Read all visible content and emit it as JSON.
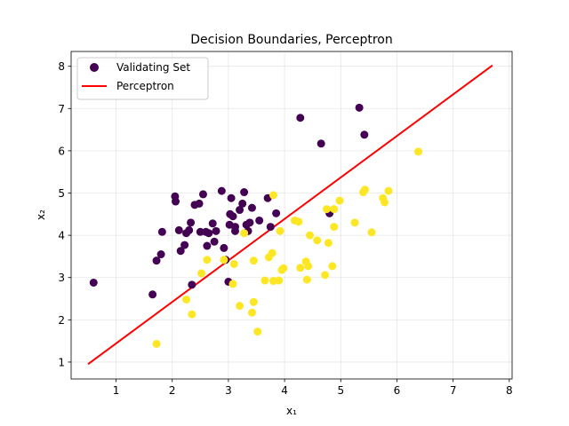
{
  "chart_data": {
    "type": "scatter",
    "title": "Decision Boundaries, Perceptron",
    "xlabel": "x₁",
    "ylabel": "x₂",
    "xlim": [
      0.2,
      8.05
    ],
    "ylim": [
      0.6,
      8.35
    ],
    "xticks": [
      1,
      2,
      3,
      4,
      5,
      6,
      7,
      8
    ],
    "yticks": [
      1,
      2,
      3,
      4,
      5,
      6,
      7,
      8
    ],
    "grid": true,
    "legend_position": "top-left",
    "colors": {
      "class0": "#440154",
      "class1": "#fde725",
      "boundary": "#ff0000"
    },
    "series": [
      {
        "name": "Validating Set",
        "kind": "scatter",
        "points_class0": [
          [
            0.6,
            2.88
          ],
          [
            1.65,
            2.6
          ],
          [
            1.72,
            3.4
          ],
          [
            1.8,
            3.55
          ],
          [
            1.82,
            4.08
          ],
          [
            2.05,
            4.92
          ],
          [
            2.06,
            4.8
          ],
          [
            2.12,
            4.12
          ],
          [
            2.15,
            3.63
          ],
          [
            2.22,
            3.77
          ],
          [
            2.25,
            4.05
          ],
          [
            2.3,
            4.12
          ],
          [
            2.33,
            4.3
          ],
          [
            2.35,
            2.83
          ],
          [
            2.4,
            4.72
          ],
          [
            2.48,
            4.75
          ],
          [
            2.5,
            4.08
          ],
          [
            2.55,
            4.97
          ],
          [
            2.6,
            4.08
          ],
          [
            2.62,
            3.75
          ],
          [
            2.65,
            4.05
          ],
          [
            2.72,
            4.28
          ],
          [
            2.75,
            3.85
          ],
          [
            2.78,
            4.1
          ],
          [
            2.88,
            5.05
          ],
          [
            2.92,
            3.7
          ],
          [
            2.95,
            3.42
          ],
          [
            3.0,
            2.9
          ],
          [
            3.02,
            4.25
          ],
          [
            3.03,
            4.5
          ],
          [
            3.05,
            4.88
          ],
          [
            3.08,
            4.45
          ],
          [
            3.12,
            4.2
          ],
          [
            3.12,
            4.1
          ],
          [
            3.2,
            4.6
          ],
          [
            3.25,
            4.75
          ],
          [
            3.28,
            5.02
          ],
          [
            3.32,
            4.25
          ],
          [
            3.35,
            4.1
          ],
          [
            3.38,
            4.3
          ],
          [
            3.42,
            4.65
          ],
          [
            3.55,
            4.35
          ],
          [
            3.7,
            4.88
          ],
          [
            3.75,
            4.2
          ],
          [
            3.85,
            4.52
          ],
          [
            4.28,
            6.78
          ],
          [
            4.65,
            6.17
          ],
          [
            4.8,
            4.52
          ],
          [
            5.33,
            7.02
          ],
          [
            5.42,
            6.38
          ]
        ],
        "points_class1": [
          [
            1.72,
            1.43
          ],
          [
            2.25,
            2.48
          ],
          [
            2.35,
            2.13
          ],
          [
            2.52,
            3.1
          ],
          [
            2.62,
            3.42
          ],
          [
            2.92,
            3.42
          ],
          [
            3.08,
            2.85
          ],
          [
            3.1,
            3.32
          ],
          [
            3.2,
            2.33
          ],
          [
            3.28,
            4.05
          ],
          [
            3.42,
            2.17
          ],
          [
            3.45,
            2.42
          ],
          [
            3.45,
            3.4
          ],
          [
            3.52,
            1.72
          ],
          [
            3.65,
            2.93
          ],
          [
            3.72,
            3.48
          ],
          [
            3.78,
            3.58
          ],
          [
            3.8,
            2.92
          ],
          [
            3.8,
            4.95
          ],
          [
            3.9,
            2.93
          ],
          [
            3.92,
            4.1
          ],
          [
            3.95,
            3.18
          ],
          [
            3.98,
            3.22
          ],
          [
            4.18,
            4.35
          ],
          [
            4.25,
            4.32
          ],
          [
            4.28,
            3.23
          ],
          [
            4.38,
            3.38
          ],
          [
            4.4,
            2.95
          ],
          [
            4.42,
            3.27
          ],
          [
            4.45,
            4.0
          ],
          [
            4.58,
            3.88
          ],
          [
            4.72,
            3.06
          ],
          [
            4.75,
            4.62
          ],
          [
            4.78,
            3.82
          ],
          [
            4.85,
            3.27
          ],
          [
            4.88,
            4.62
          ],
          [
            4.88,
            4.2
          ],
          [
            4.98,
            4.82
          ],
          [
            5.25,
            4.3
          ],
          [
            5.4,
            5.02
          ],
          [
            5.43,
            5.08
          ],
          [
            5.55,
            4.07
          ],
          [
            5.75,
            4.88
          ],
          [
            5.78,
            4.78
          ],
          [
            5.85,
            5.05
          ],
          [
            6.38,
            5.98
          ]
        ]
      },
      {
        "name": "Perceptron",
        "kind": "line",
        "x": [
          0.5,
          7.7
        ],
        "y": [
          0.95,
          8.02
        ]
      }
    ]
  }
}
